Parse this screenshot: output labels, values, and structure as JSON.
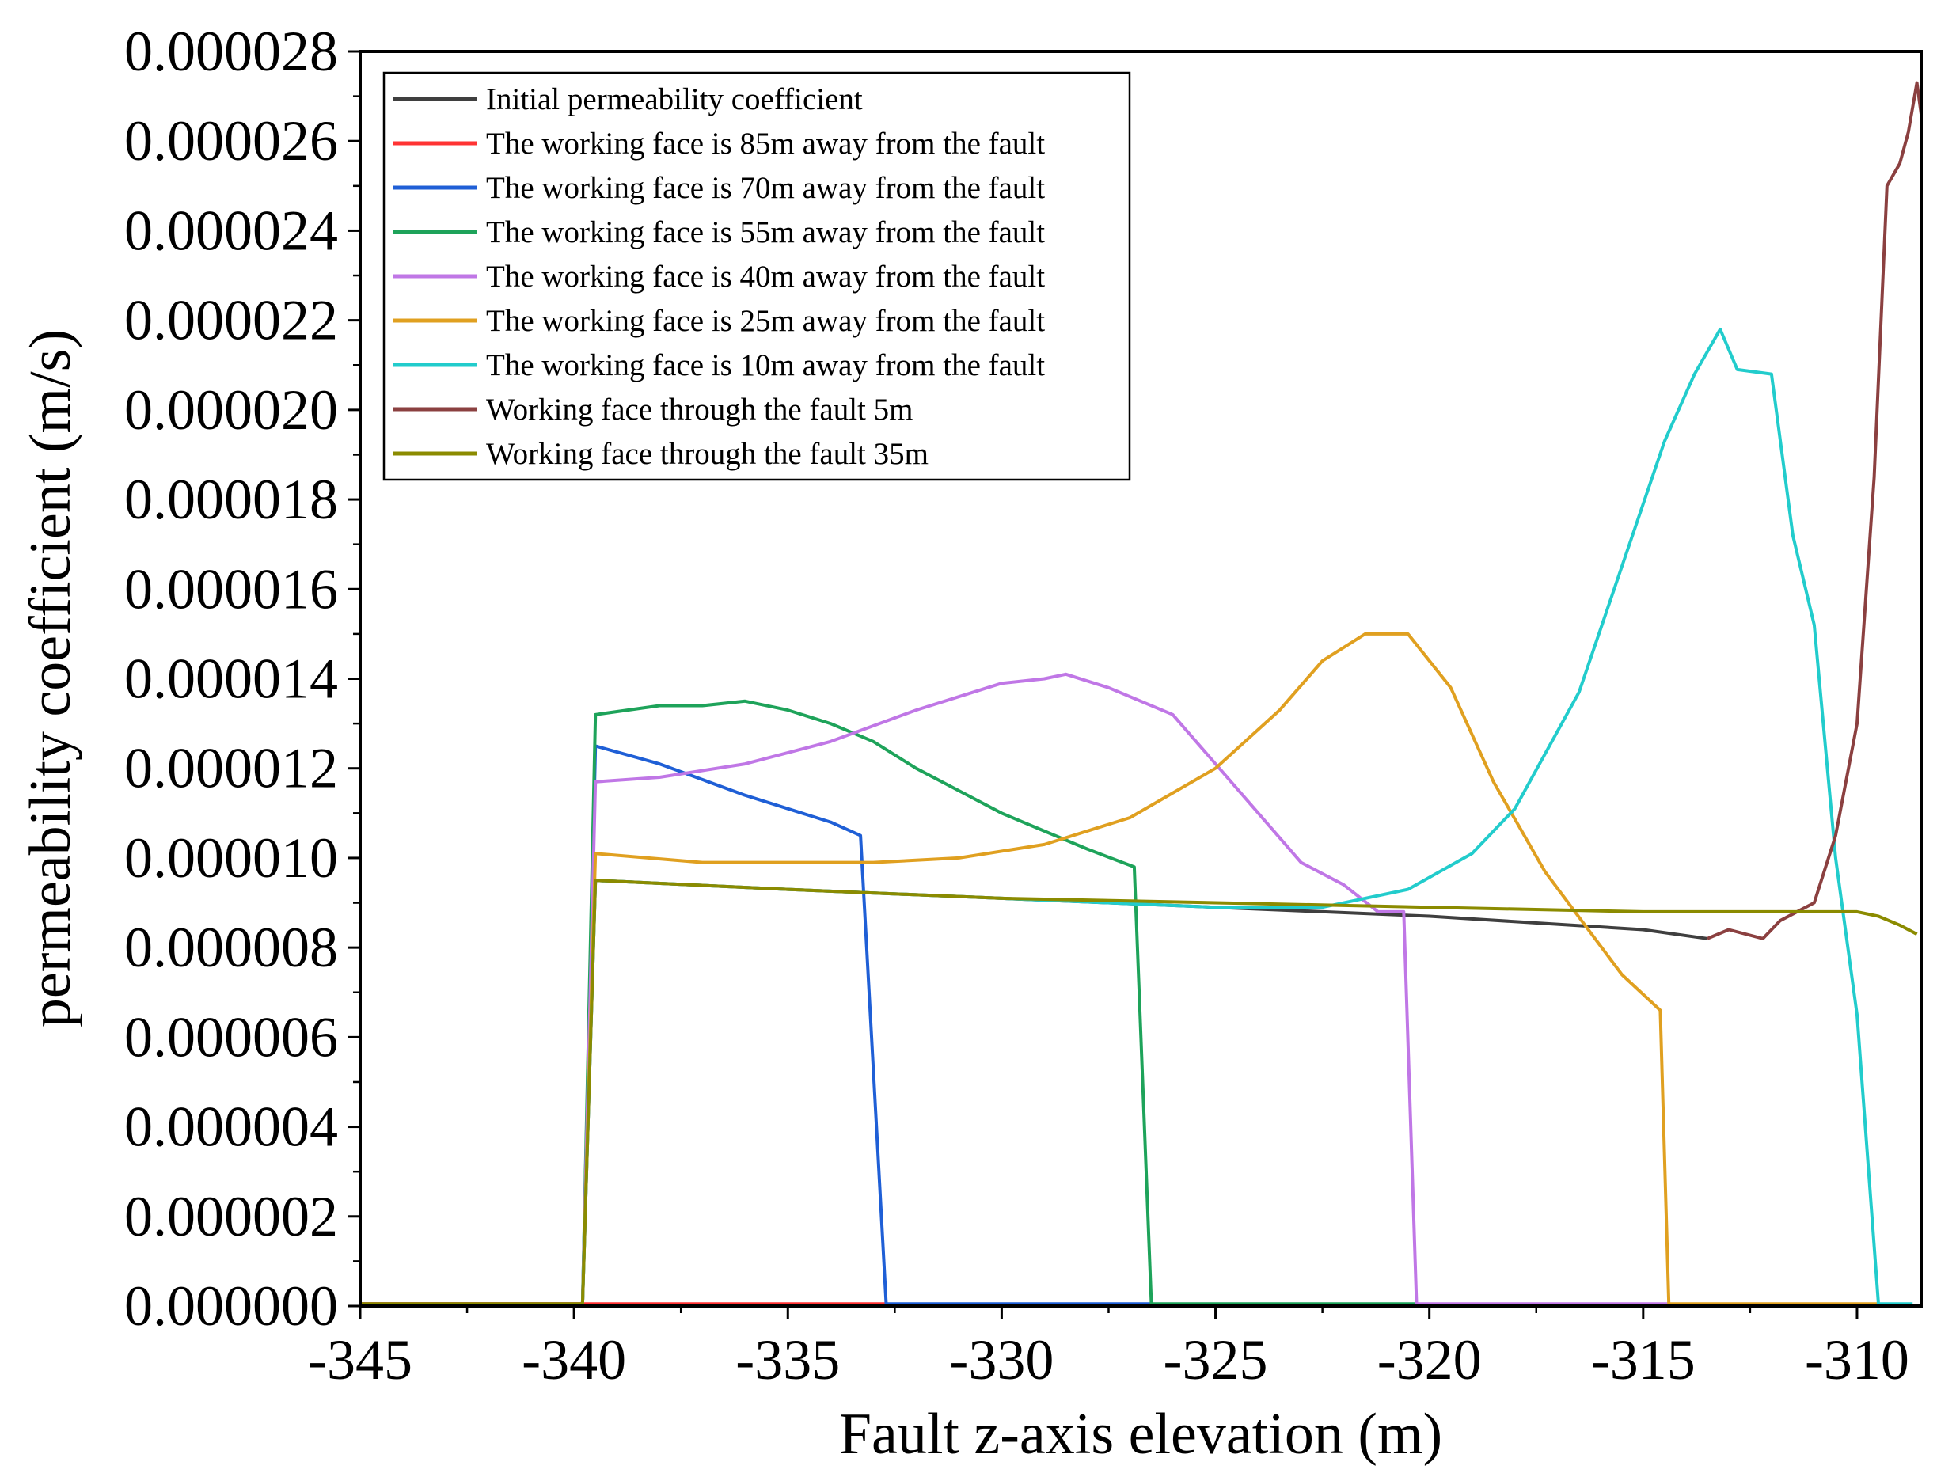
{
  "chart_data": {
    "type": "line",
    "title": "",
    "xlabel": "Fault z-axis elevation (m)",
    "ylabel": "permeability coefficient (m/s)",
    "xlim": [
      -345,
      -308.5
    ],
    "ylim": [
      0,
      2.8e-05
    ],
    "xticks": [
      -345,
      -340,
      -335,
      -330,
      -325,
      -320,
      -315,
      -310
    ],
    "xtick_labels": [
      "-345",
      "-340",
      "-335",
      "-330",
      "-325",
      "-320",
      "-315",
      "-310"
    ],
    "yticks": [
      0,
      2e-06,
      4e-06,
      6e-06,
      8e-06,
      1e-05,
      1.2e-05,
      1.4e-05,
      1.6e-05,
      1.8e-05,
      2e-05,
      2.2e-05,
      2.4e-05,
      2.6e-05,
      2.8e-05
    ],
    "ytick_labels": [
      "0.000000",
      "0.000002",
      "0.000004",
      "0.000006",
      "0.000008",
      "0.000010",
      "0.000012",
      "0.000014",
      "0.000016",
      "0.000018",
      "0.000020",
      "0.000022",
      "0.000024",
      "0.000026",
      "0.000028"
    ],
    "legend_position": "top-left",
    "grid": false,
    "series": [
      {
        "name": "Initial permeability coefficient",
        "color": "#3f3f3f",
        "points": [
          [
            -345,
            5e-08
          ],
          [
            -339.8,
            5e-08
          ],
          [
            -339.5,
            9.5e-06
          ],
          [
            -335,
            9.3e-06
          ],
          [
            -330,
            9.1e-06
          ],
          [
            -325,
            8.9e-06
          ],
          [
            -320,
            8.7e-06
          ],
          [
            -315,
            8.4e-06
          ],
          [
            -313.5,
            8.2e-06
          ]
        ]
      },
      {
        "name": "The working face is 85m away from the fault",
        "color": "#ff3333",
        "points": [
          [
            -345,
            5e-08
          ],
          [
            -332.7,
            5e-08
          ]
        ]
      },
      {
        "name": "The working face is 70m away from the fault",
        "color": "#1f5fd6",
        "points": [
          [
            -339.8,
            5e-08
          ],
          [
            -339.5,
            1.25e-05
          ],
          [
            -338,
            1.21e-05
          ],
          [
            -336,
            1.14e-05
          ],
          [
            -335,
            1.11e-05
          ],
          [
            -334,
            1.08e-05
          ],
          [
            -333.3,
            1.05e-05
          ],
          [
            -332.7,
            5e-08
          ],
          [
            -326.5,
            5e-08
          ]
        ]
      },
      {
        "name": "The working face is 55m away from the fault",
        "color": "#1ea35a",
        "points": [
          [
            -339.8,
            5e-08
          ],
          [
            -339.5,
            1.32e-05
          ],
          [
            -338,
            1.34e-05
          ],
          [
            -337,
            1.34e-05
          ],
          [
            -336,
            1.35e-05
          ],
          [
            -335,
            1.33e-05
          ],
          [
            -334,
            1.3e-05
          ],
          [
            -333,
            1.26e-05
          ],
          [
            -332,
            1.2e-05
          ],
          [
            -331,
            1.15e-05
          ],
          [
            -330,
            1.1e-05
          ],
          [
            -329,
            1.06e-05
          ],
          [
            -328,
            1.02e-05
          ],
          [
            -326.9,
            9.8e-06
          ],
          [
            -326.5,
            5e-08
          ],
          [
            -320.3,
            5e-08
          ]
        ]
      },
      {
        "name": "The working face is 40m away from the fault",
        "color": "#c077e6",
        "points": [
          [
            -339.8,
            5e-08
          ],
          [
            -339.5,
            1.17e-05
          ],
          [
            -338,
            1.18e-05
          ],
          [
            -336,
            1.21e-05
          ],
          [
            -334,
            1.26e-05
          ],
          [
            -332,
            1.33e-05
          ],
          [
            -330,
            1.39e-05
          ],
          [
            -329,
            1.4e-05
          ],
          [
            -328.5,
            1.41e-05
          ],
          [
            -327.5,
            1.38e-05
          ],
          [
            -326,
            1.32e-05
          ],
          [
            -324,
            1.1e-05
          ],
          [
            -323,
            9.9e-06
          ],
          [
            -322,
            9.4e-06
          ],
          [
            -321.2,
            8.8e-06
          ],
          [
            -320.6,
            8.8e-06
          ],
          [
            -320.3,
            5e-08
          ],
          [
            -314.4,
            5e-08
          ]
        ]
      },
      {
        "name": "The working face is 25m away from the fault",
        "color": "#e0a020",
        "points": [
          [
            -339.8,
            5e-08
          ],
          [
            -339.5,
            1.01e-05
          ],
          [
            -337,
            9.9e-06
          ],
          [
            -335,
            9.9e-06
          ],
          [
            -333,
            9.9e-06
          ],
          [
            -331,
            1e-05
          ],
          [
            -329,
            1.03e-05
          ],
          [
            -327,
            1.09e-05
          ],
          [
            -325,
            1.2e-05
          ],
          [
            -323.5,
            1.33e-05
          ],
          [
            -322.5,
            1.44e-05
          ],
          [
            -321.5,
            1.5e-05
          ],
          [
            -320.5,
            1.5e-05
          ],
          [
            -319.5,
            1.38e-05
          ],
          [
            -318.5,
            1.17e-05
          ],
          [
            -317.3,
            9.7e-06
          ],
          [
            -315.5,
            7.4e-06
          ],
          [
            -314.6,
            6.6e-06
          ],
          [
            -314.4,
            5e-08
          ],
          [
            -309.5,
            5e-08
          ]
        ]
      },
      {
        "name": "The working face is 10m away from the fault",
        "color": "#22cccc",
        "points": [
          [
            -339.8,
            5e-08
          ],
          [
            -339.5,
            9.5e-06
          ],
          [
            -335,
            9.3e-06
          ],
          [
            -330,
            9.1e-06
          ],
          [
            -325,
            8.9e-06
          ],
          [
            -322.5,
            8.9e-06
          ],
          [
            -321.5,
            9.1e-06
          ],
          [
            -320.5,
            9.3e-06
          ],
          [
            -319,
            1.01e-05
          ],
          [
            -318,
            1.11e-05
          ],
          [
            -316.5,
            1.37e-05
          ],
          [
            -315.5,
            1.65e-05
          ],
          [
            -314.5,
            1.93e-05
          ],
          [
            -313.8,
            2.08e-05
          ],
          [
            -313.2,
            2.18e-05
          ],
          [
            -312.8,
            2.09e-05
          ],
          [
            -312,
            2.08e-05
          ],
          [
            -311.5,
            1.72e-05
          ],
          [
            -311,
            1.52e-05
          ],
          [
            -310.5,
            1e-05
          ],
          [
            -310,
            6.5e-06
          ],
          [
            -309.5,
            5e-08
          ],
          [
            -308.7,
            5e-08
          ]
        ]
      },
      {
        "name": "Working face through the fault 5m",
        "color": "#8b4040",
        "points": [
          [
            -313.5,
            8.2e-06
          ],
          [
            -313,
            8.4e-06
          ],
          [
            -312.2,
            8.2e-06
          ],
          [
            -311.8,
            8.6e-06
          ],
          [
            -311,
            9e-06
          ],
          [
            -310.5,
            1.05e-05
          ],
          [
            -310,
            1.3e-05
          ],
          [
            -309.6,
            1.85e-05
          ],
          [
            -309.3,
            2.5e-05
          ],
          [
            -309,
            2.55e-05
          ],
          [
            -308.8,
            2.62e-05
          ],
          [
            -308.6,
            2.73e-05
          ],
          [
            -308.5,
            2.66e-05
          ]
        ]
      },
      {
        "name": "Working face through the fault 35m",
        "color": "#8b8b00",
        "points": [
          [
            -345,
            5e-08
          ],
          [
            -339.8,
            5e-08
          ],
          [
            -339.5,
            9.5e-06
          ],
          [
            -335,
            9.3e-06
          ],
          [
            -330,
            9.1e-06
          ],
          [
            -325,
            9e-06
          ],
          [
            -320,
            8.9e-06
          ],
          [
            -315,
            8.8e-06
          ],
          [
            -310,
            8.8e-06
          ],
          [
            -309.5,
            8.7e-06
          ],
          [
            -309,
            8.5e-06
          ],
          [
            -308.6,
            8.3e-06
          ]
        ]
      }
    ]
  }
}
